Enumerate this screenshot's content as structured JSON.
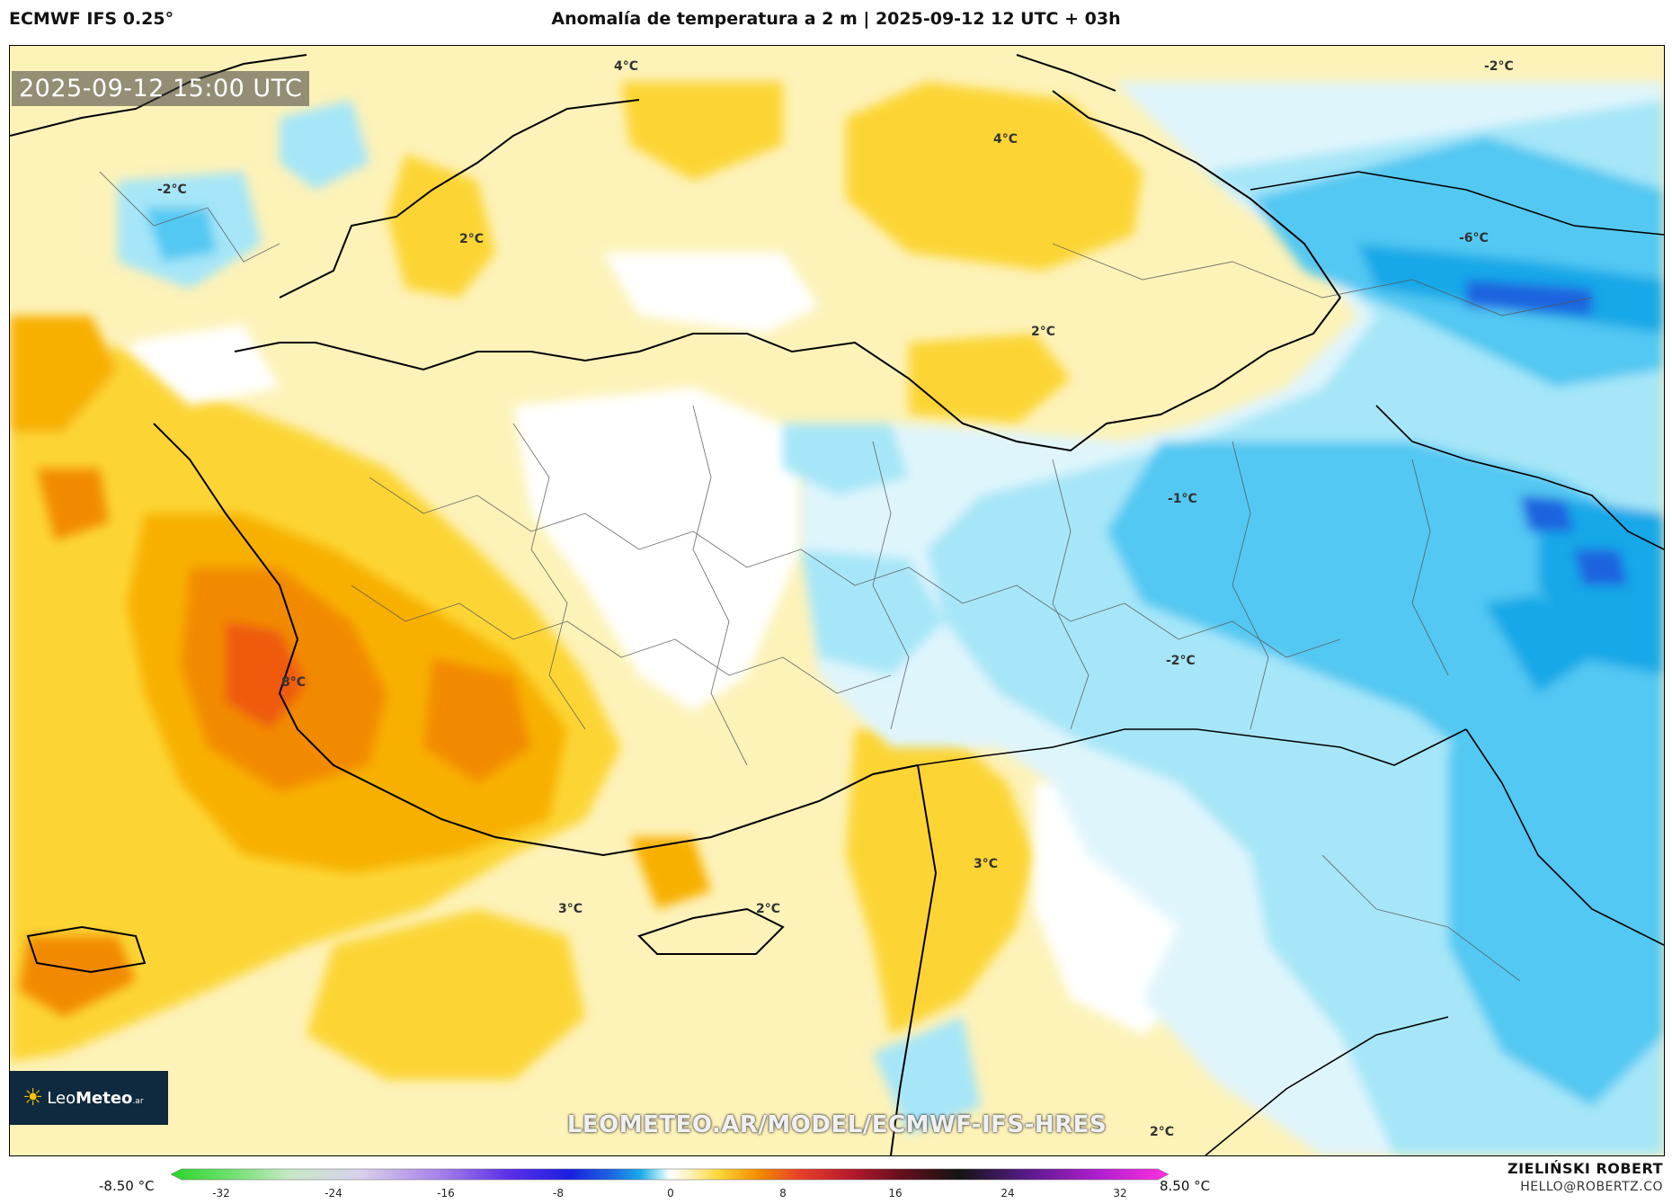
{
  "header": {
    "model": "ECMWF IFS 0.25°",
    "title": "Anomalía de temperatura a 2 m | 2025-09-12 12 UTC + 03h"
  },
  "map": {
    "timestamp": "2025-09-12 15:00 UTC",
    "watermark": "LEOMETEO.AR/MODEL/ECMWF-IFS-HRES",
    "logo": {
      "icon": "sun-logo-icon",
      "brand_light": "Leo",
      "brand_bold": "Meteo",
      "brand_suffix": ".ar"
    },
    "contour_labels": [
      "4°C",
      "4°C",
      "2°C",
      "2°C",
      "-2°C",
      "-2°C",
      "-6°C",
      "-1°C",
      "-2°C",
      "8°C",
      "3°C",
      "2°C",
      "3°C",
      "2°C"
    ],
    "colors": {
      "warm_light": "#fdf2b8",
      "warm": "#fcd535",
      "warm_mid": "#f8b000",
      "warm_strong": "#f28a00",
      "hot": "#ef5a10",
      "neutral": "#ffffff",
      "cool_light": "#dff5fc",
      "cool": "#a6e6f8",
      "cool_mid": "#52c8f2",
      "cold": "#19a8e8",
      "very_cold": "#1b64e0"
    }
  },
  "colorbar": {
    "min_label": "-8.50 °C",
    "max_label": "8.50 °C",
    "ticks": [
      "-32",
      "-24",
      "-16",
      "-8",
      "0",
      "8",
      "16",
      "24",
      "32"
    ]
  },
  "author": {
    "name": "ZIELIŃSKI ROBERT",
    "email": "HELLO@ROBERTZ.CO"
  }
}
